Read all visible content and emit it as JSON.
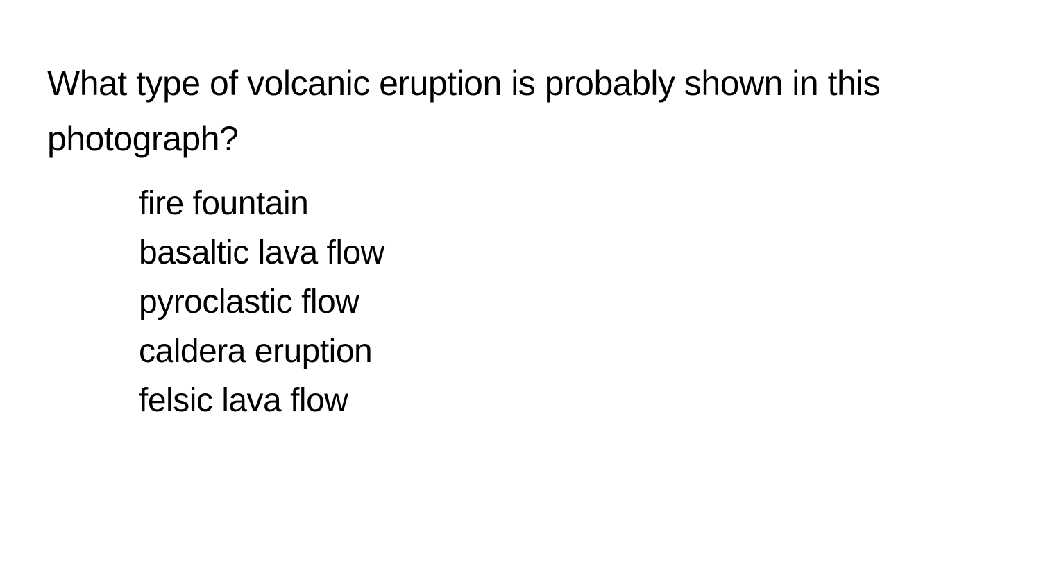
{
  "document": {
    "background_color": "#ffffff",
    "text_color": "#000000",
    "question_fontsize": 50,
    "option_fontsize": 48,
    "question": "What type of volcanic eruption is probably shown in this photograph?",
    "options": [
      "fire fountain",
      "basaltic lava flow",
      "pyroclastic flow",
      "caldera eruption",
      "felsic lava flow"
    ]
  }
}
